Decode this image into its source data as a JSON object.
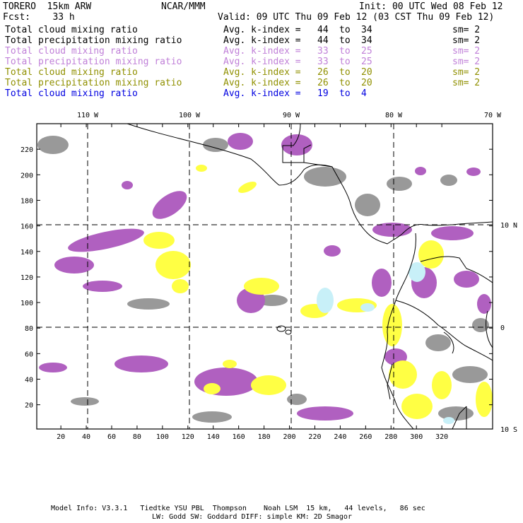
{
  "header": {
    "model": "TORERO  15km ARW",
    "org": "NCAR/MMM",
    "init": "Init: 00 UTC Wed 08 Feb 12",
    "forecast": "Fcst:    33 h",
    "valid": "Valid: 09 UTC Thu 09 Feb 12 (03 CST Thu 09 Feb 12)"
  },
  "legend": [
    {
      "field": "Total cloud mixing ratio",
      "index_label": "Avg. k-index =",
      "from": "44",
      "to_word": "to",
      "to": "34",
      "sm": "sm= 2",
      "color": "#000000"
    },
    {
      "field": "Total precipitation mixing ratio",
      "index_label": "Avg. k-index =",
      "from": "44",
      "to_word": "to",
      "to": "34",
      "sm": "sm= 2",
      "color": "#000000"
    },
    {
      "field": "Total cloud mixing ratio",
      "index_label": "Avg. k-index =",
      "from": "33",
      "to_word": "to",
      "to": "25",
      "sm": "sm= 2",
      "color": "#c080d8"
    },
    {
      "field": "Total precipitation mixing ratio",
      "index_label": "Avg. k-index =",
      "from": "33",
      "to_word": "to",
      "to": "25",
      "sm": "sm= 2",
      "color": "#c080d8"
    },
    {
      "field": "Total cloud mixing ratio",
      "index_label": "Avg. k-index =",
      "from": "26",
      "to_word": "to",
      "to": "20",
      "sm": "sm= 2",
      "color": "#909000"
    },
    {
      "field": "Total precipitation mixing ratio",
      "index_label": "Avg. k-index =",
      "from": "26",
      "to_word": "to",
      "to": "20",
      "sm": "sm= 2",
      "color": "#909000"
    },
    {
      "field": "Total cloud mixing ratio",
      "index_label": "Avg. k-index =",
      "from": "19",
      "to_word": "to",
      "to": "4",
      "sm": "",
      "color": "#0000e0"
    }
  ],
  "map": {
    "top_lon_labels": [
      "110 W",
      "100 W",
      "90 W",
      "80 W",
      "70 W"
    ],
    "right_lat_labels": [
      "10 N",
      "0",
      "10 S"
    ],
    "x_ticks": [
      "20",
      "40",
      "60",
      "80",
      "100",
      "120",
      "140",
      "160",
      "180",
      "200",
      "220",
      "240",
      "260",
      "280",
      "300",
      "320"
    ],
    "y_ticks": [
      "20",
      "40",
      "60",
      "80",
      "100",
      "120",
      "140",
      "160",
      "180",
      "200",
      "220"
    ],
    "colors": {
      "high_cloud": "#999999",
      "mid_cloud": "#b060c0",
      "low_cloud": "#ffff44",
      "shallow_cloud": "#c8f0f8",
      "coast": "#000000"
    }
  },
  "footer": {
    "line1": "Model Info: V3.3.1   Tiedtke YSU PBL  Thompson    Noah LSM  15 km,   44 levels,   86 sec",
    "line2": "LW: Godd SW: Goddard DIFF: simple KM: 2D Smagor"
  }
}
